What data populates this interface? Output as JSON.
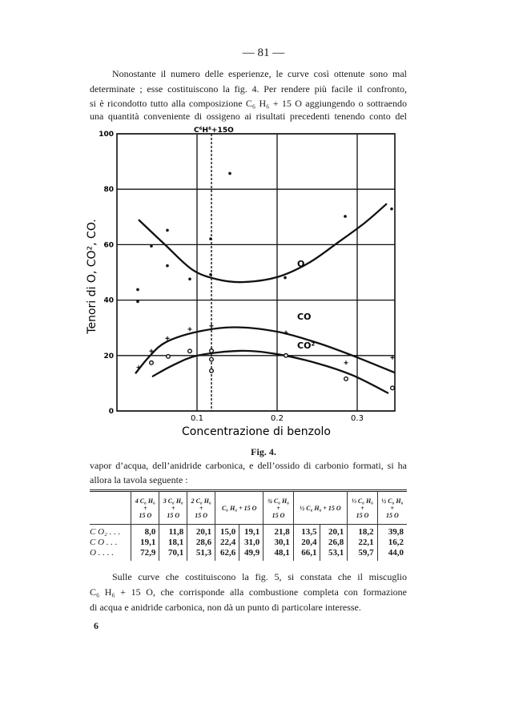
{
  "page_number": "— 81 —",
  "paragraph1": [
    "Nonostante il numero delle esperienze, le curve così ottenute sono mal",
    "determinate ; esse costituiscono la fig. 4. Per rendere più facile il confronto,",
    "si è ricondotto tutto alla composizione C₆ H₆ + 15 O aggiungendo o sottraendo",
    "una quantità conveniente di ossigeno ai risultati precedenti tenendo conto del"
  ],
  "chart_data": {
    "type": "scatter",
    "title": "",
    "xlabel": "Concentrazione di benzolo",
    "ylabel": "Tenori di O, CO², CO.",
    "xlim": [
      0,
      0.347
    ],
    "ylim": [
      0,
      100
    ],
    "x_ticks": [
      "0.1",
      "0.2",
      "0.3"
    ],
    "y_ticks": [
      "0",
      "20",
      "40",
      "60",
      "80",
      "100"
    ],
    "grid": true,
    "marker_line": {
      "x": 0.118,
      "label": "C⁶H⁶+15O",
      "style": "dashed"
    },
    "series": [
      {
        "name": "O",
        "curve": [
          [
            0.027,
            69
          ],
          [
            0.06,
            60
          ],
          [
            0.094,
            51
          ],
          [
            0.125,
            47.5
          ],
          [
            0.157,
            46.5
          ],
          [
            0.2,
            48.3
          ],
          [
            0.24,
            53.5
          ],
          [
            0.277,
            61
          ],
          [
            0.31,
            68
          ],
          [
            0.337,
            74.8
          ]
        ],
        "points": [
          [
            0.026,
            43.8
          ],
          [
            0.026,
            39.5
          ],
          [
            0.043,
            59.5
          ],
          [
            0.063,
            65.2
          ],
          [
            0.063,
            52.4
          ],
          [
            0.091,
            47.6
          ],
          [
            0.117,
            62.1
          ],
          [
            0.117,
            49.2
          ],
          [
            0.141,
            85.7
          ],
          [
            0.21,
            48.1
          ],
          [
            0.285,
            70.2
          ],
          [
            0.343,
            72.9
          ]
        ]
      },
      {
        "name": "CO",
        "curve": [
          [
            0.023,
            13.5
          ],
          [
            0.04,
            19.5
          ],
          [
            0.061,
            24.8
          ],
          [
            0.101,
            28.6
          ],
          [
            0.147,
            30.2
          ],
          [
            0.2,
            28.6
          ],
          [
            0.25,
            24.6
          ],
          [
            0.294,
            20
          ],
          [
            0.347,
            13.8
          ]
        ],
        "points": [
          [
            0.027,
            15.7
          ],
          [
            0.043,
            21.6
          ],
          [
            0.063,
            26.2
          ],
          [
            0.091,
            29.5
          ],
          [
            0.118,
            30.7
          ],
          [
            0.211,
            28.3
          ],
          [
            0.286,
            17.4
          ],
          [
            0.344,
            19.3
          ]
        ]
      },
      {
        "name": "CO²",
        "curve": [
          [
            0.044,
            12.4
          ],
          [
            0.07,
            16.5
          ],
          [
            0.101,
            20
          ],
          [
            0.154,
            21.7
          ],
          [
            0.2,
            20.5
          ],
          [
            0.25,
            17.2
          ],
          [
            0.294,
            12.9
          ],
          [
            0.339,
            6.4
          ]
        ],
        "points": [
          [
            0.043,
            17.4
          ],
          [
            0.064,
            19.7
          ],
          [
            0.091,
            21.6
          ],
          [
            0.118,
            21.7
          ],
          [
            0.118,
            18.6
          ],
          [
            0.118,
            14.5
          ],
          [
            0.211,
            20
          ],
          [
            0.286,
            11.6
          ],
          [
            0.344,
            8.3
          ]
        ]
      }
    ]
  },
  "figure_caption": "Fig. 4.",
  "paragraph2": [
    "vapor d’acqua, dell’anidride carbonica, e dell’ossido di carbonio formati, si ha",
    "allora la tavola seguente :"
  ],
  "table": {
    "headers": [
      {
        "top": "4 C₆ H₆",
        "mid": "+",
        "bot": "15 O",
        "span": 1
      },
      {
        "top": "3 C₆ H₆",
        "mid": "+",
        "bot": "15 O",
        "span": 1
      },
      {
        "top": "2 C₆ H₆",
        "mid": "+",
        "bot": "15 O",
        "span": 1
      },
      {
        "top": "C₆ H₆ + 15 O",
        "mid": "",
        "bot": "",
        "span": 2
      },
      {
        "top": "¾ C₆ H₆",
        "mid": "+",
        "bot": "15 O",
        "span": 1
      },
      {
        "top": "½ C₆ H₆ + 15 O",
        "mid": "",
        "bot": "",
        "span": 2
      },
      {
        "top": "⅓ C₆ H₆",
        "mid": "+",
        "bot": "15 O",
        "span": 1
      },
      {
        "top": "½ C₆ H₆",
        "mid": "+",
        "bot": "15 O",
        "span": 1
      }
    ],
    "rows": [
      {
        "label": "C O₂ . . .",
        "values": [
          "8,0",
          "11,8",
          "20,1",
          "15,0",
          "19,1",
          "21,8",
          "13,5",
          "20,1",
          "18,2",
          "39,8"
        ]
      },
      {
        "label": "C O . . .",
        "values": [
          "19,1",
          "18,1",
          "28,6",
          "22,4",
          "31,0",
          "30,1",
          "20,4",
          "26,8",
          "22,1",
          "16,2"
        ]
      },
      {
        "label": "O . . . .",
        "values": [
          "72,9",
          "70,1",
          "51,3",
          "62,6",
          "49,9",
          "48,1",
          "66,1",
          "53,1",
          "59,7",
          "44,0"
        ]
      }
    ]
  },
  "paragraph3": [
    "Sulle curve che costituiscono la fig. 5, si constata che il miscuglio",
    "C₆ H₆ + 15 O, che corrisponde alla combustione completa con formazione",
    "di acqua e anidride carbonica, non dà un punto di particolare interesse."
  ],
  "footer_signature": "6"
}
